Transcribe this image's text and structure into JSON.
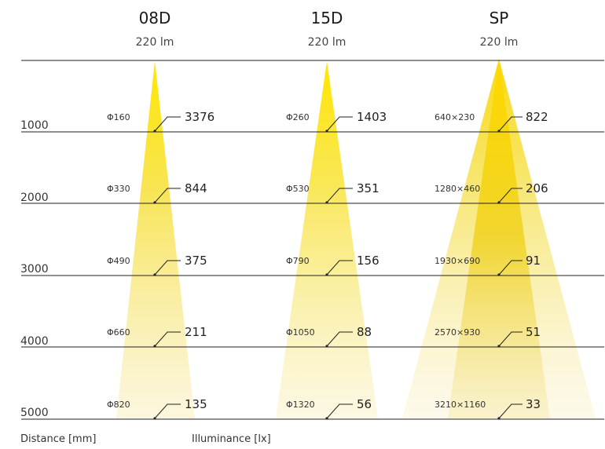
{
  "columns": [
    {
      "name": "08D",
      "lumen": "220 lm",
      "type": "round",
      "diameters": [
        "Φ160",
        "Φ330",
        "Φ490",
        "Φ660",
        "Φ820"
      ],
      "illuminance": [
        "3376",
        "844",
        "375",
        "211",
        "135"
      ]
    },
    {
      "name": "15D",
      "lumen": "220 lm",
      "type": "round",
      "diameters": [
        "Φ260",
        "Φ530",
        "Φ790",
        "Φ1050",
        "Φ1320"
      ],
      "illuminance": [
        "1403",
        "351",
        "156",
        "88",
        "56"
      ]
    },
    {
      "name": "SP",
      "lumen": "220 lm",
      "type": "elliptical",
      "diameters": [
        "640×230",
        "1280×460",
        "1930×690",
        "2570×930",
        "3210×1160"
      ],
      "illuminance": [
        "822",
        "206",
        "91",
        "51",
        "33"
      ]
    }
  ],
  "distances": [
    "1000",
    "2000",
    "3000",
    "4000",
    "5000"
  ],
  "footer": {
    "distance_label": "Distance [mm]",
    "illuminance_label": "Illuminance [lx]"
  },
  "colors": {
    "beam": "#f5dc00",
    "line": "#222222"
  }
}
